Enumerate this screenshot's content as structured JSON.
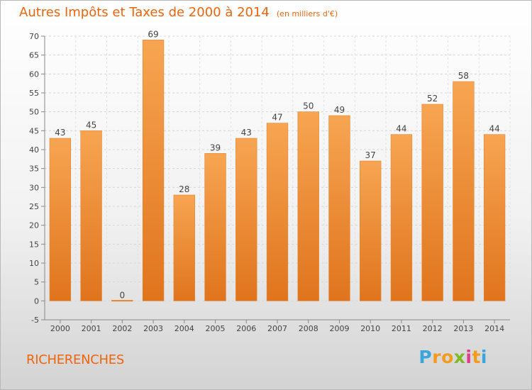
{
  "chart_data": {
    "type": "bar",
    "title": "Autres Impôts et Taxes de 2000 à 2014",
    "subtitle": "(en milliers d'€)",
    "categories": [
      "2000",
      "2001",
      "2002",
      "2003",
      "2004",
      "2005",
      "2006",
      "2007",
      "2008",
      "2009",
      "2010",
      "2011",
      "2012",
      "2013",
      "2014"
    ],
    "values": [
      43,
      45,
      0,
      69,
      28,
      39,
      43,
      47,
      50,
      49,
      37,
      44,
      52,
      58,
      44
    ],
    "ylim": [
      -5,
      70
    ],
    "yticks": [
      -5,
      0,
      5,
      10,
      15,
      20,
      25,
      30,
      35,
      40,
      45,
      50,
      55,
      60,
      65,
      70
    ],
    "grid": true,
    "bar_color": "#f08a2c"
  },
  "footer": {
    "commune": "RICHERENCHES",
    "logo_letters": [
      "P",
      "r",
      "o",
      "x",
      "i",
      "t",
      "i"
    ],
    "logo_colors": [
      "#3aa6dc",
      "#f29b1d",
      "#f29b1d",
      "#7dbb26",
      "#e23b8d",
      "#f29b1d",
      "#3aa6dc"
    ]
  }
}
